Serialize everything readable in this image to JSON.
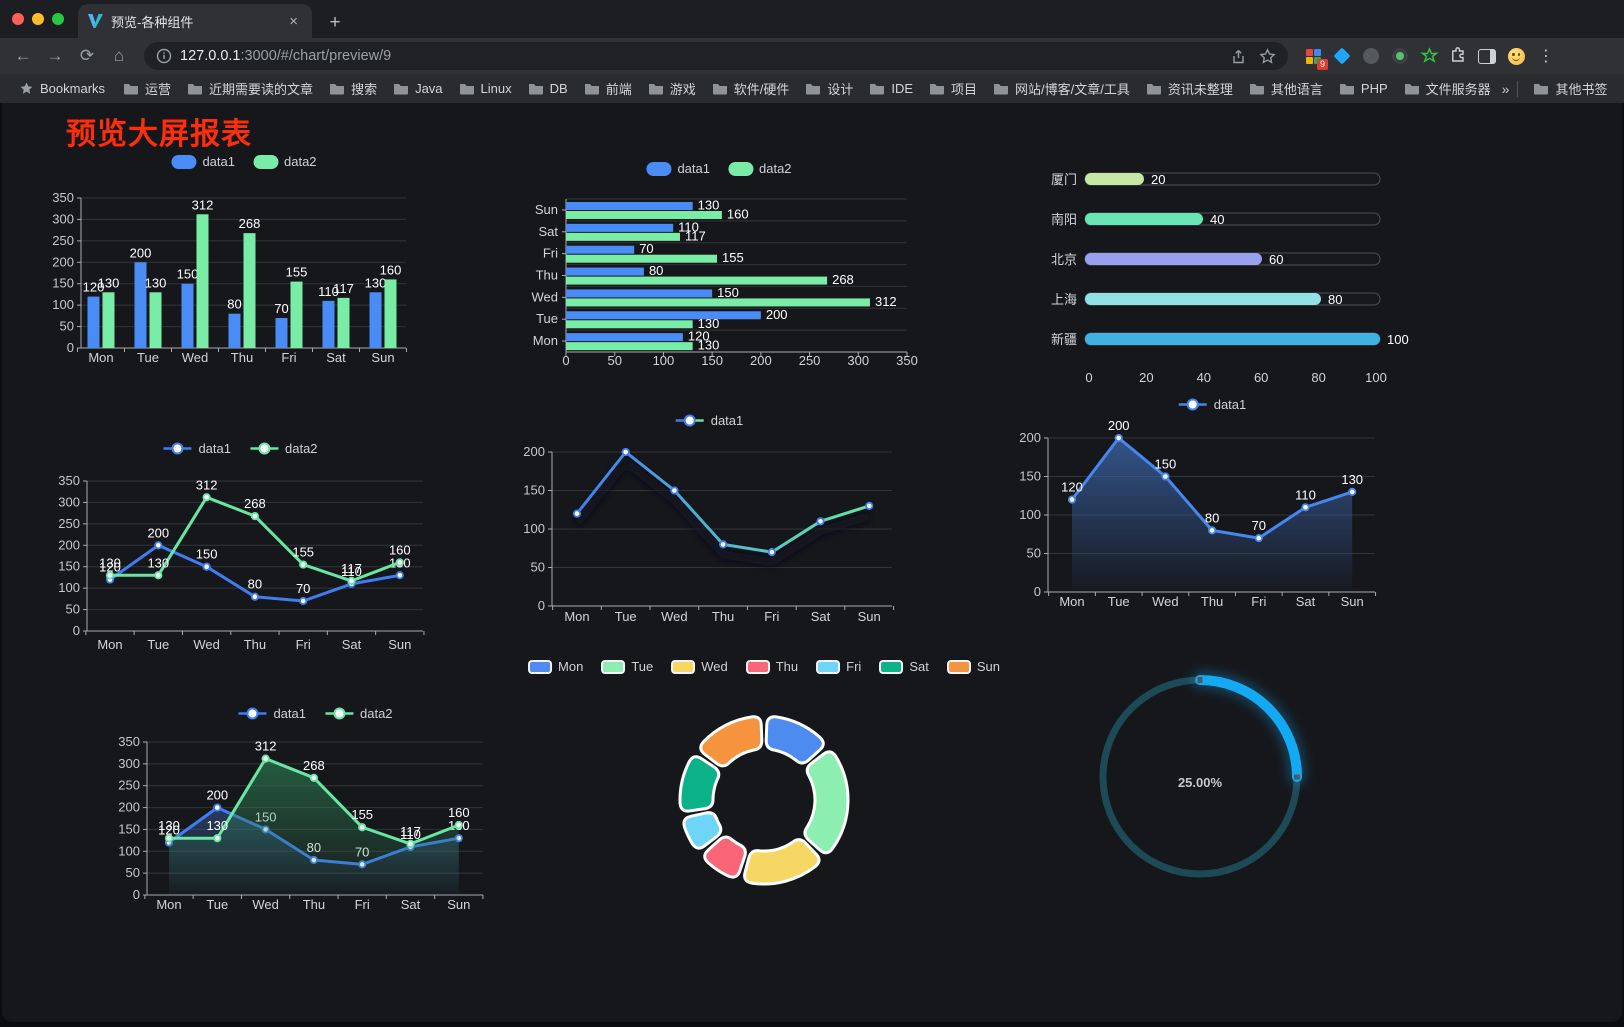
{
  "browser": {
    "tab_title": "预览-各种组件",
    "tab_close": "×",
    "new_tab_plus": "+",
    "url_host": "127.0.0.1",
    "url_rest": ":3000/#/chart/preview/9",
    "bookmarks_label": "Bookmarks",
    "bookmarks": [
      "运营",
      "近期需要读的文章",
      "搜索",
      "Java",
      "Linux",
      "DB",
      "前端",
      "游戏",
      "软件/硬件",
      "设计",
      "IDE",
      "项目",
      "网站/博客/文章/工具",
      "资讯未整理",
      "其他语言",
      "PHP",
      "文件服务器"
    ],
    "bookmarks_overflow": "»",
    "other_bookmarks": "其他书签",
    "extension_badge": "9",
    "menu_dots": "⋮"
  },
  "page": {
    "title": "预览大屏报表"
  },
  "chart_data": [
    {
      "id": "bar-vertical",
      "type": "bar",
      "orientation": "vertical",
      "categories": [
        "Mon",
        "Tue",
        "Wed",
        "Thu",
        "Fri",
        "Sat",
        "Sun"
      ],
      "series": [
        {
          "name": "data1",
          "color": "#4a8cf5",
          "values": [
            120,
            200,
            150,
            80,
            70,
            110,
            130
          ]
        },
        {
          "name": "data2",
          "color": "#79eca6",
          "values": [
            130,
            130,
            312,
            268,
            155,
            117,
            160
          ]
        }
      ],
      "ylim": [
        0,
        350
      ],
      "ytick_step": 50,
      "grid": true,
      "legend_position": "top",
      "value_labels": true
    },
    {
      "id": "bar-horizontal",
      "type": "bar",
      "orientation": "horizontal",
      "categories": [
        "Mon",
        "Tue",
        "Wed",
        "Thu",
        "Fri",
        "Sat",
        "Sun"
      ],
      "categories_display_top_to_bottom": [
        "Sun",
        "Sat",
        "Fri",
        "Thu",
        "Wed",
        "Tue",
        "Mon"
      ],
      "series": [
        {
          "name": "data1",
          "color": "#4a8cf5",
          "values": [
            120,
            200,
            150,
            80,
            70,
            110,
            130
          ]
        },
        {
          "name": "data2",
          "color": "#79eca6",
          "values": [
            130,
            130,
            312,
            268,
            155,
            117,
            160
          ]
        }
      ],
      "xlim": [
        0,
        350
      ],
      "xtick_step": 50,
      "legend_position": "top",
      "value_labels": true
    },
    {
      "id": "city-progress",
      "type": "bar",
      "subtype": "progress-pill",
      "categories": [
        "厦门",
        "南阳",
        "北京",
        "上海",
        "新疆"
      ],
      "values": [
        20,
        40,
        60,
        80,
        100
      ],
      "colors": [
        "#c6e8a5",
        "#69e4b3",
        "#9aa0f0",
        "#92e1e6",
        "#3fb1e3"
      ],
      "xlim": [
        0,
        100
      ],
      "xticks": [
        0,
        20,
        40,
        60,
        80,
        100
      ],
      "value_labels": true
    },
    {
      "id": "line-two-series",
      "type": "line",
      "categories": [
        "Mon",
        "Tue",
        "Wed",
        "Thu",
        "Fri",
        "Sat",
        "Sun"
      ],
      "series": [
        {
          "name": "data1",
          "color": "#3f7ef2",
          "values": [
            120,
            200,
            150,
            80,
            70,
            110,
            130
          ]
        },
        {
          "name": "data2",
          "color": "#67e7a2",
          "values": [
            130,
            130,
            312,
            268,
            155,
            117,
            160
          ]
        }
      ],
      "ylim": [
        0,
        350
      ],
      "ytick_step": 50,
      "value_labels": true,
      "legend_position": "top"
    },
    {
      "id": "line-gradient",
      "type": "line",
      "categories": [
        "Mon",
        "Tue",
        "Wed",
        "Thu",
        "Fri",
        "Sat",
        "Sun"
      ],
      "series": [
        {
          "name": "data1",
          "gradient": [
            "#3f7ef2",
            "#63e7a0"
          ],
          "color": "#3f7ef2",
          "values": [
            120,
            200,
            150,
            80,
            70,
            110,
            130
          ]
        }
      ],
      "ylim": [
        0,
        200
      ],
      "ytick_step": 50,
      "value_labels": false,
      "legend_position": "top",
      "glow_shadow": true
    },
    {
      "id": "area-single",
      "type": "area",
      "categories": [
        "Mon",
        "Tue",
        "Wed",
        "Thu",
        "Fri",
        "Sat",
        "Sun"
      ],
      "series": [
        {
          "name": "data1",
          "color": "#4587f0",
          "area": [
            "rgba(56,95,158,0.85)",
            "rgba(56,95,158,0.03)"
          ],
          "values": [
            120,
            200,
            150,
            80,
            70,
            110,
            130
          ]
        }
      ],
      "ylim": [
        0,
        200
      ],
      "ytick_step": 50,
      "value_labels": true,
      "legend_position": "top"
    },
    {
      "id": "area-two-series",
      "type": "area",
      "categories": [
        "Mon",
        "Tue",
        "Wed",
        "Thu",
        "Fri",
        "Sat",
        "Sun"
      ],
      "series": [
        {
          "name": "data1",
          "color": "#3f7ef2",
          "area": [
            "rgba(60,105,175,0.45)",
            "rgba(60,105,175,0.02)"
          ],
          "values": [
            120,
            200,
            150,
            80,
            70,
            110,
            130
          ]
        },
        {
          "name": "data2",
          "color": "#67e7a2",
          "area": [
            "rgba(46,130,84,0.65)",
            "rgba(46,130,84,0.03)"
          ],
          "values": [
            130,
            130,
            312,
            268,
            155,
            117,
            160
          ]
        }
      ],
      "ylim": [
        0,
        350
      ],
      "ytick_step": 50,
      "value_labels": true,
      "legend_position": "top"
    },
    {
      "id": "donut",
      "type": "pie",
      "subtype": "donut-rounded",
      "labels": [
        "Mon",
        "Tue",
        "Wed",
        "Thu",
        "Fri",
        "Sat",
        "Sun"
      ],
      "values": [
        120,
        200,
        150,
        80,
        70,
        110,
        130
      ],
      "colors": [
        "#4e8bf0",
        "#8cefb1",
        "#f7d763",
        "#fa6577",
        "#6ed5f7",
        "#0cb287",
        "#f6933f"
      ],
      "border_color": "#ffffff",
      "legend_position": "top"
    },
    {
      "id": "gauge-ring",
      "type": "gauge",
      "value_percent": 25,
      "label": "25.00%",
      "arc_color": "#14a9f3",
      "track_color": "#1d4a57",
      "text_color": "#4db4f4"
    }
  ]
}
